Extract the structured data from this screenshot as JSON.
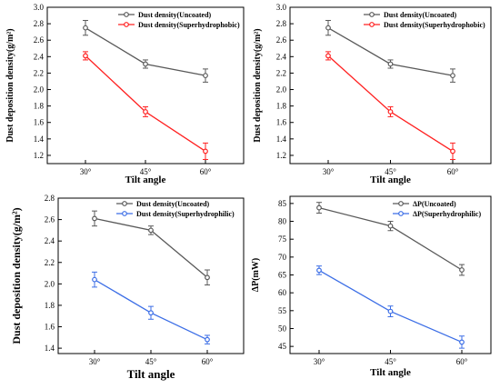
{
  "chart_data": [
    {
      "type": "line",
      "xlabel": "Tilt angle",
      "ylabel": "Dust deposition density(g/m²)",
      "categories": [
        "30°",
        "45°",
        "60°"
      ],
      "ylim": [
        1.1,
        3.0
      ],
      "yticks": [
        1.2,
        1.4,
        1.6,
        1.8,
        2.0,
        2.2,
        2.4,
        2.6,
        2.8,
        3.0
      ],
      "ytick_labels": [
        "1.2",
        "1.4",
        "1.6",
        "1.8",
        "2.0",
        "2.2",
        "2.4",
        "2.6",
        "2.8",
        "3.0"
      ],
      "legend_position": "top-right",
      "grid": false,
      "series": [
        {
          "name": "Dust density(Uncoated)",
          "color": "#595959",
          "marker": "circle",
          "values": [
            2.75,
            2.31,
            2.17
          ],
          "errors": [
            0.09,
            0.05,
            0.08
          ]
        },
        {
          "name": "Dust density(Superhydrophobic)",
          "color": "#ff2020",
          "marker": "circle",
          "values": [
            2.41,
            1.73,
            1.25
          ],
          "errors": [
            0.05,
            0.06,
            0.1
          ]
        }
      ]
    },
    {
      "type": "line",
      "xlabel": "Tilt angle",
      "ylabel": "Dust deposition density(g/m²)",
      "categories": [
        "30°",
        "45°",
        "60°"
      ],
      "ylim": [
        1.1,
        3.0
      ],
      "yticks": [
        1.2,
        1.4,
        1.6,
        1.8,
        2.0,
        2.2,
        2.4,
        2.6,
        2.8,
        3.0
      ],
      "ytick_labels": [
        "1.2",
        "1.4",
        "1.6",
        "1.8",
        "2.0",
        "2.2",
        "2.4",
        "2.6",
        "2.8",
        "3.0"
      ],
      "legend_position": "top-right",
      "grid": false,
      "series": [
        {
          "name": "Dust density(Uncoated)",
          "color": "#595959",
          "marker": "circle",
          "values": [
            2.75,
            2.31,
            2.17
          ],
          "errors": [
            0.09,
            0.05,
            0.08
          ]
        },
        {
          "name": "Dust density(Superhydrophobic)",
          "color": "#ff2020",
          "marker": "circle",
          "values": [
            2.41,
            1.73,
            1.25
          ],
          "errors": [
            0.05,
            0.06,
            0.1
          ]
        }
      ]
    },
    {
      "type": "line",
      "xlabel": "Tilt angle",
      "ylabel": "Dust deposition density(g/m²)",
      "categories": [
        "30°",
        "45°",
        "60°"
      ],
      "ylim": [
        1.35,
        2.8
      ],
      "yticks": [
        1.4,
        1.6,
        1.8,
        2.0,
        2.2,
        2.4,
        2.6,
        2.8
      ],
      "ytick_labels": [
        "1.4",
        "1.6",
        "1.8",
        "2.0",
        "2.2",
        "2.4",
        "2.6",
        "2.8"
      ],
      "legend_position": "top-right",
      "grid": false,
      "series": [
        {
          "name": "Dust density(Uncoated)",
          "color": "#595959",
          "marker": "circle",
          "values": [
            2.61,
            2.5,
            2.06
          ],
          "errors": [
            0.07,
            0.04,
            0.07
          ]
        },
        {
          "name": "Dust density(Superhydrophilic)",
          "color": "#3c6ee6",
          "marker": "circle",
          "values": [
            2.04,
            1.73,
            1.48
          ],
          "errors": [
            0.07,
            0.06,
            0.04
          ]
        }
      ]
    },
    {
      "type": "line",
      "xlabel": "Tilt angle",
      "ylabel": "ΔP(mW)",
      "categories": [
        "30°",
        "45°",
        "60°"
      ],
      "ylim": [
        43,
        87
      ],
      "yticks": [
        45,
        50,
        55,
        60,
        65,
        70,
        75,
        80,
        85
      ],
      "ytick_labels": [
        "45",
        "50",
        "55",
        "60",
        "65",
        "70",
        "75",
        "80",
        "85"
      ],
      "legend_position": "top-right",
      "grid": false,
      "series": [
        {
          "name": "ΔP(Uncoated)",
          "color": "#595959",
          "marker": "circle",
          "values": [
            83.8,
            78.7,
            66.4
          ],
          "errors": [
            1.5,
            1.3,
            1.5
          ]
        },
        {
          "name": "ΔP(Superhydrophilic)",
          "color": "#3c6ee6",
          "marker": "circle",
          "values": [
            66.3,
            54.8,
            46.2
          ],
          "errors": [
            1.2,
            1.5,
            1.7
          ]
        }
      ]
    }
  ]
}
